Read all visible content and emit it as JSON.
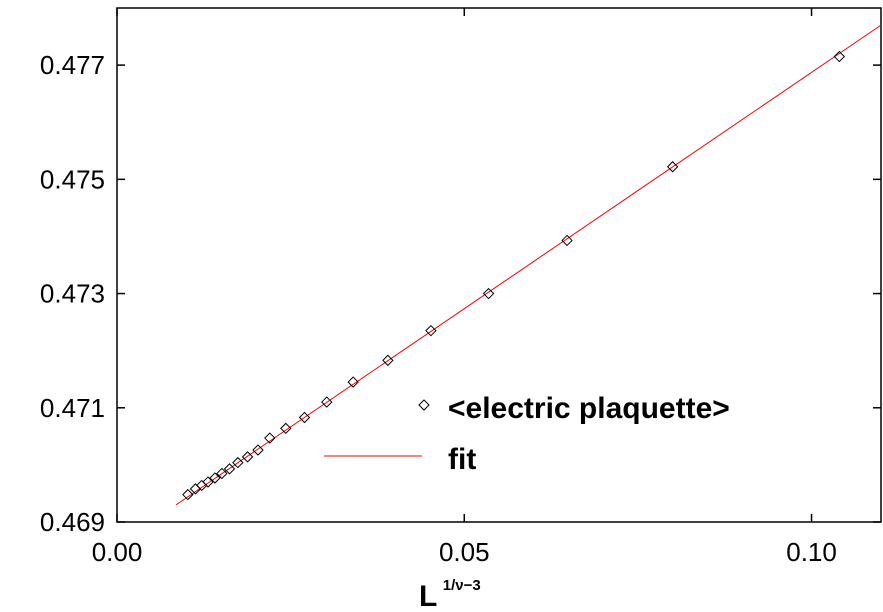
{
  "chart_data": {
    "type": "scatter",
    "title": "",
    "xlabel": {
      "base": "L",
      "superscript": "1/ν−3"
    },
    "ylabel": "",
    "xlim": [
      0.0,
      0.11
    ],
    "ylim": [
      0.469,
      0.478
    ],
    "x_ticks": [
      {
        "value": 0.0,
        "label": "0.00"
      },
      {
        "value": 0.05,
        "label": "0.05"
      },
      {
        "value": 0.1,
        "label": "0.10"
      }
    ],
    "y_ticks": [
      {
        "value": 0.469,
        "label": "0.469"
      },
      {
        "value": 0.471,
        "label": "0.471"
      },
      {
        "value": 0.473,
        "label": "0.473"
      },
      {
        "value": 0.475,
        "label": "0.475"
      },
      {
        "value": 0.477,
        "label": "0.477"
      }
    ],
    "grid": false,
    "legend": "center-right",
    "series": [
      {
        "name": "<electric plaquette>",
        "marker": "diamond",
        "color": "#000000",
        "points": [
          [
            0.0102,
            0.46948
          ],
          [
            0.0113,
            0.46958
          ],
          [
            0.0122,
            0.46964
          ],
          [
            0.0131,
            0.4697
          ],
          [
            0.0141,
            0.46977
          ],
          [
            0.0151,
            0.46985
          ],
          [
            0.0162,
            0.46993
          ],
          [
            0.0174,
            0.47004
          ],
          [
            0.0188,
            0.47014
          ],
          [
            0.0203,
            0.47026
          ],
          [
            0.022,
            0.47047
          ],
          [
            0.0243,
            0.47064
          ],
          [
            0.027,
            0.47083
          ],
          [
            0.0302,
            0.4711
          ],
          [
            0.034,
            0.47145
          ],
          [
            0.039,
            0.47183
          ],
          [
            0.0452,
            0.47235
          ],
          [
            0.0535,
            0.473
          ],
          [
            0.0648,
            0.47393
          ],
          [
            0.08,
            0.47522
          ],
          [
            0.104,
            0.47715
          ]
        ]
      },
      {
        "name": "fit",
        "type": "line",
        "color": "#ff0000",
        "points": [
          [
            0.0085,
            0.4693
          ],
          [
            0.11,
            0.4777
          ]
        ]
      }
    ]
  }
}
